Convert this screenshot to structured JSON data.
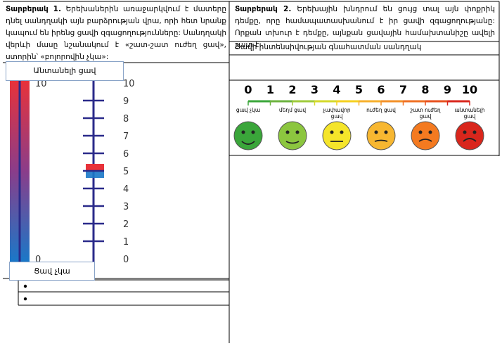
{
  "option1": {
    "label": "Տարբերակ 1.",
    "text": "Երեխաներին առաջարկվում է մատերը դնել սանդղակի այն բարձրության վրա, որի հետ նրանք կապում են իրենց ցավի զգացողությունները: Սանդղակի վերևի մասը նշանակում է «շատ-շատ ուժեղ ցավ», ստորին՝ «բոլորովին չկա»:"
  },
  "option2": {
    "label": "Տարբերակ 2.",
    "text": "Երեխային խնդրում են ցույց տալ այն փոքրիկ դեմքը, որը համապատասխանում է իր ցավի զգացողությանը: Որքան տխուր է դեմքը, այնքան ցավային համախտանիշը ավելի շատ է:"
  },
  "scale_title": "Ցավի ինտենսիվության գնահատման սանդղակ",
  "vertical_scale": {
    "top_label": "Անտանելի ցավ",
    "bottom_label": "Ցավ չկա",
    "bar_ticks": [
      "10",
      "0"
    ],
    "ruler_ticks": [
      "10",
      "9",
      "8",
      "7",
      "6",
      "5",
      "4",
      "3",
      "2",
      "1",
      "0"
    ]
  },
  "face_scale": {
    "numbers": [
      "0",
      "1",
      "2",
      "3",
      "4",
      "5",
      "6",
      "7",
      "8",
      "9",
      "10"
    ],
    "faces": [
      "ցավ չկա",
      "մեղմ ցավ",
      "չափավոր ցավ",
      "ուժեղ ցավ",
      "շատ ուժեղ ցավ",
      "անտանելի ցավ"
    ]
  }
}
